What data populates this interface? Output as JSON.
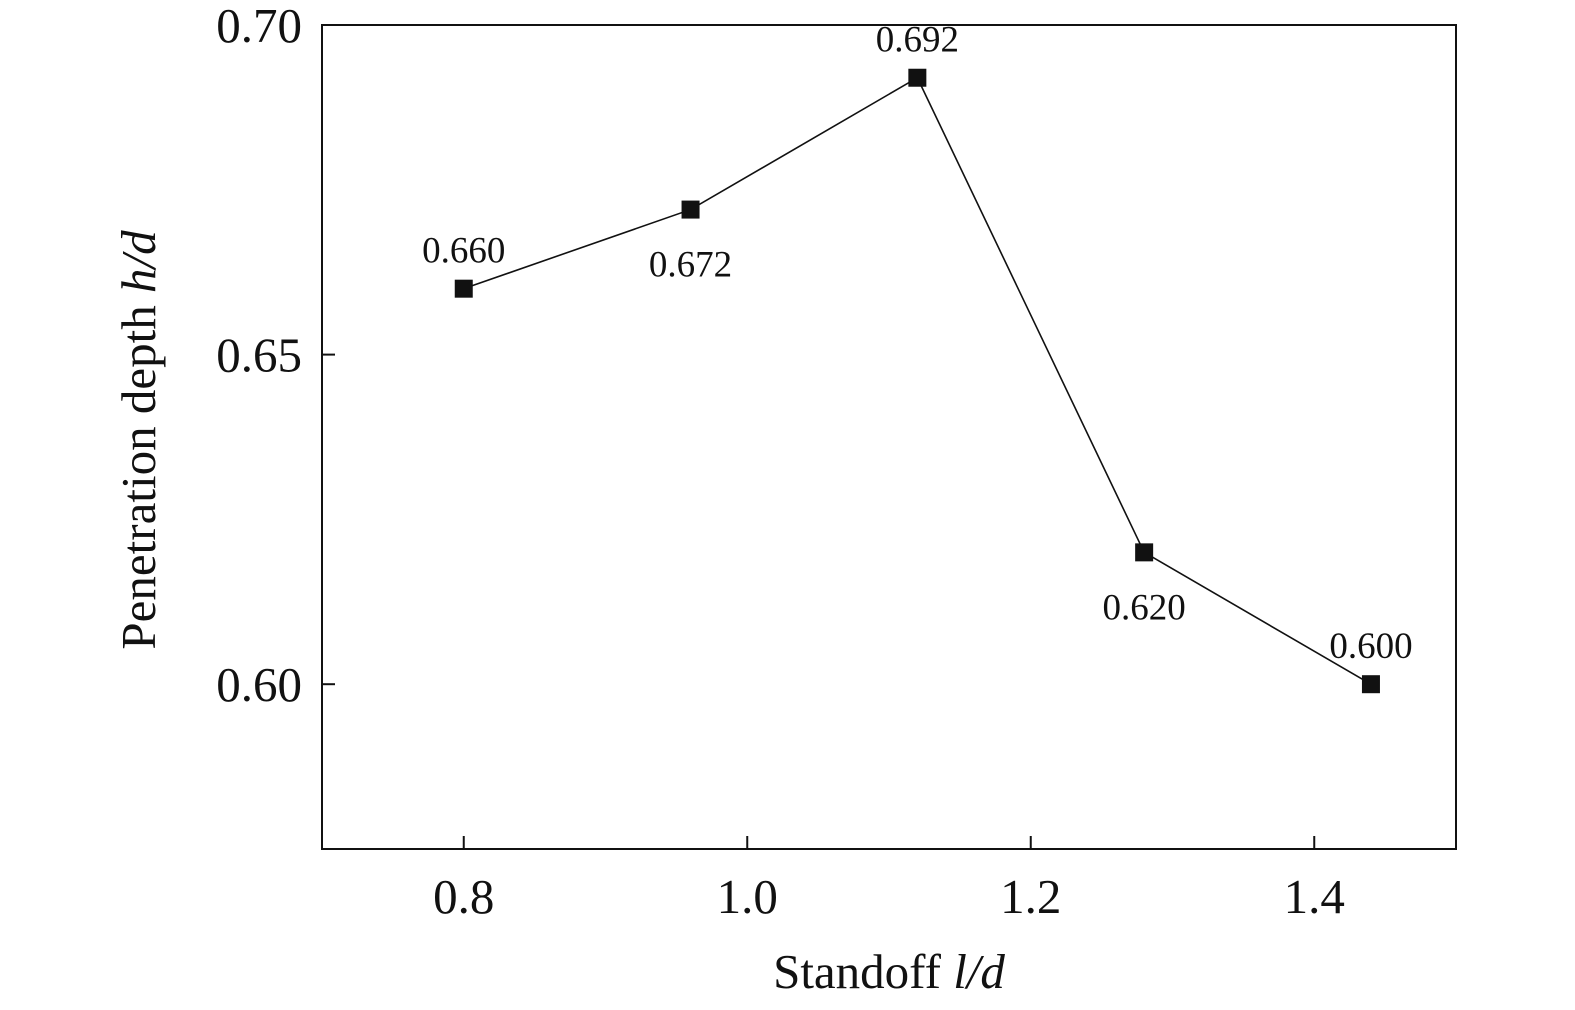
{
  "chart_data": {
    "type": "line",
    "x": [
      0.8,
      0.96,
      1.12,
      1.28,
      1.44
    ],
    "series": [
      {
        "values": [
          0.66,
          0.672,
          0.692,
          0.62,
          0.6
        ]
      }
    ],
    "data_labels": [
      "0.660",
      "0.672",
      "0.692",
      "0.620",
      "0.600"
    ],
    "xlabel": {
      "prefix": "Standoff ",
      "italic": "l/d"
    },
    "ylabel": {
      "prefix": "Penetration depth ",
      "italic": "h/d"
    },
    "xlim": [
      0.7,
      1.5
    ],
    "ylim": [
      0.575,
      0.7
    ],
    "xticks": [
      0.8,
      1.0,
      1.2,
      1.4
    ],
    "xtick_labels": [
      "0.8",
      "1.0",
      "1.2",
      "1.4"
    ],
    "yticks": [
      0.6,
      0.65,
      0.7
    ],
    "ytick_labels": [
      "0.60",
      "0.65",
      "0.70"
    ],
    "marker": "square",
    "line_color": "#111111",
    "marker_color": "#111111",
    "grid": false,
    "legend": "none"
  }
}
